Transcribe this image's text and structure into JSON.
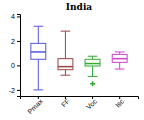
{
  "chart_data": {
    "type": "box",
    "title": "India",
    "categories": [
      "Pmax",
      "FF",
      "Voc",
      "Isc"
    ],
    "colors": [
      "#5555dd",
      "#994444",
      "#33aa33",
      "#cc44cc"
    ],
    "boxes": [
      {
        "whisker_low": -2.0,
        "q1": 0.5,
        "median": 1.1,
        "q3": 1.8,
        "whisker_high": 3.2,
        "fliers": []
      },
      {
        "whisker_low": -0.8,
        "q1": -0.35,
        "median": -0.1,
        "q3": 0.55,
        "whisker_high": 2.8,
        "fliers": []
      },
      {
        "whisker_low": -0.9,
        "q1": -0.05,
        "median": 0.15,
        "q3": 0.5,
        "whisker_high": 0.75,
        "fliers": [
          -1.5
        ]
      },
      {
        "whisker_low": -0.3,
        "q1": 0.25,
        "median": 0.55,
        "q3": 0.9,
        "whisker_high": 1.1,
        "fliers": []
      }
    ],
    "ylim": [
      -2.5,
      4.2
    ],
    "yticks": [
      -2,
      0,
      2,
      4
    ],
    "grid": false
  }
}
